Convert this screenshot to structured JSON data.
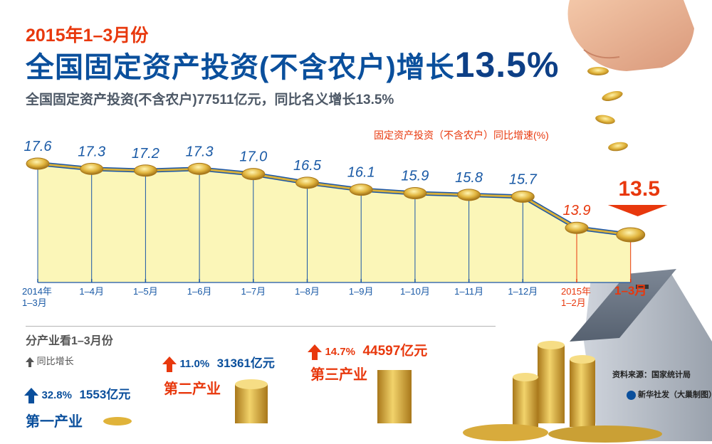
{
  "header": {
    "supertitle": "2015年1–3月份",
    "headline": "全国固定资产投资(不含农户)增长",
    "headline_value": "13.5%",
    "subtitle": "全国固定资产投资(不含农户)77511亿元，同比名义增长13.5%"
  },
  "colors": {
    "line_blue": "#1a55a6",
    "line_gold": "#d8b03a",
    "area_fill": "#fbf6b8",
    "label_blue": "#1a5aa6",
    "accent_red": "#e8380d",
    "headline_blue": "#0a4f9c"
  },
  "chart_data": {
    "type": "area",
    "legend": "固定资产投资（不含农户）同比增速(%)",
    "legend_placement": "top-right",
    "categories": [
      "2014年\n1–3月",
      "1–4月",
      "1–5月",
      "1–6月",
      "1–7月",
      "1–8月",
      "1–9月",
      "1–10月",
      "1–11月",
      "1–12月",
      "2015年\n1–2月",
      "1–3月"
    ],
    "values": [
      17.6,
      17.3,
      17.2,
      17.3,
      17.0,
      16.5,
      16.1,
      15.9,
      15.8,
      15.7,
      13.9,
      13.5
    ],
    "value_labels": [
      "17.6",
      "17.3",
      "17.2",
      "17.3",
      "17.0",
      "16.5",
      "16.1",
      "15.9",
      "15.8",
      "15.7",
      "13.9",
      "13.5"
    ],
    "highlight_index": 11,
    "y_range": [
      13.5,
      17.6
    ],
    "grid": false
  },
  "industries": {
    "heading": "分产业看1–3月份",
    "legend": "同比增长",
    "items": [
      {
        "name": "第一产业",
        "growth": "32.8%",
        "value": "1553亿元"
      },
      {
        "name": "第二产业",
        "growth": "11.0%",
        "value": "31361亿元"
      },
      {
        "name": "第三产业",
        "growth": "14.7%",
        "value": "44597亿元"
      }
    ]
  },
  "footer": {
    "source": "资料来源：国家统计局",
    "credit": "新华社发（大巢制图）"
  }
}
